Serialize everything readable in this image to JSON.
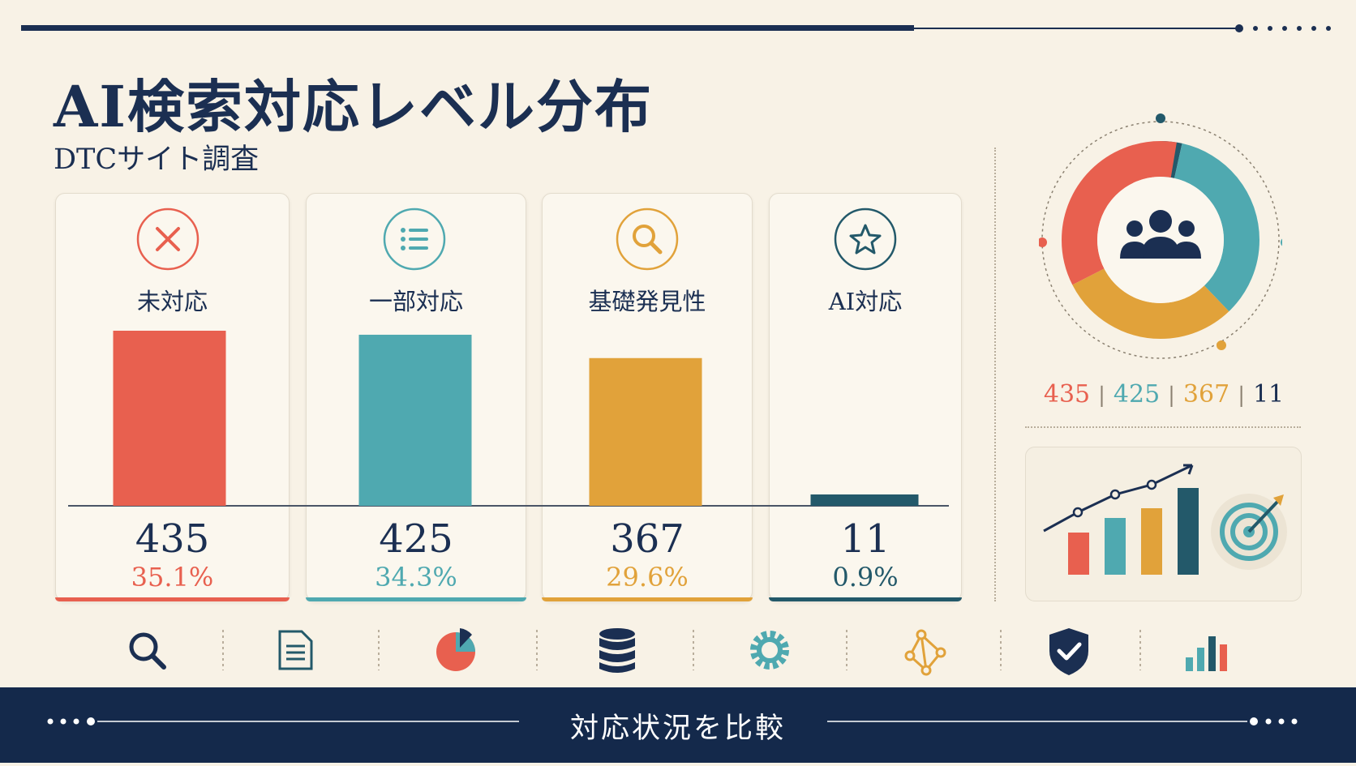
{
  "header": {
    "title": "AI検索対応レベル分布",
    "subtitle": "DTCサイト調査"
  },
  "colors": {
    "navy": "#1b2f52",
    "coral": "#e8604f",
    "teal": "#4fa9b0",
    "mustard": "#e1a23a",
    "darkteal": "#23596a",
    "cream": "#f8f2e6"
  },
  "cards": [
    {
      "label": "未対応",
      "value": "435",
      "percent": "35.1%",
      "icon": "close-icon",
      "color": "#e8604f"
    },
    {
      "label": "一部対応",
      "value": "425",
      "percent": "34.3%",
      "icon": "list-icon",
      "color": "#4fa9b0"
    },
    {
      "label": "基礎発見性",
      "value": "367",
      "percent": "29.6%",
      "icon": "search-icon",
      "color": "#e1a23a"
    },
    {
      "label": "AI対応",
      "value": "11",
      "percent": "0.9%",
      "icon": "star-icon",
      "color": "#23596a"
    }
  ],
  "chart_data": {
    "type": "bar",
    "categories": [
      "未対応",
      "一部対応",
      "基礎発見性",
      "AI対応"
    ],
    "values": [
      435,
      425,
      367,
      11
    ],
    "percentages": [
      35.1,
      34.3,
      29.6,
      0.9
    ],
    "colors": [
      "#e8604f",
      "#4fa9b0",
      "#e1a23a",
      "#23596a"
    ],
    "ylim": [
      0,
      435
    ],
    "grid": false,
    "xlabel": "",
    "ylabel": ""
  },
  "donut": {
    "values": [
      435,
      425,
      367,
      11
    ],
    "icon": "users-icon"
  },
  "side_legend": [
    "435",
    "425",
    "367",
    "11"
  ],
  "icon_row": [
    "search-icon",
    "document-icon",
    "pie-chart-icon",
    "database-icon",
    "gear-icon",
    "network-icon",
    "shield-check-icon",
    "bar-chart-icon"
  ],
  "mini_chart": {
    "icon": "growth-chart-icon",
    "target_icon": "target-icon"
  },
  "footer": {
    "label": "対応状況を比較"
  }
}
